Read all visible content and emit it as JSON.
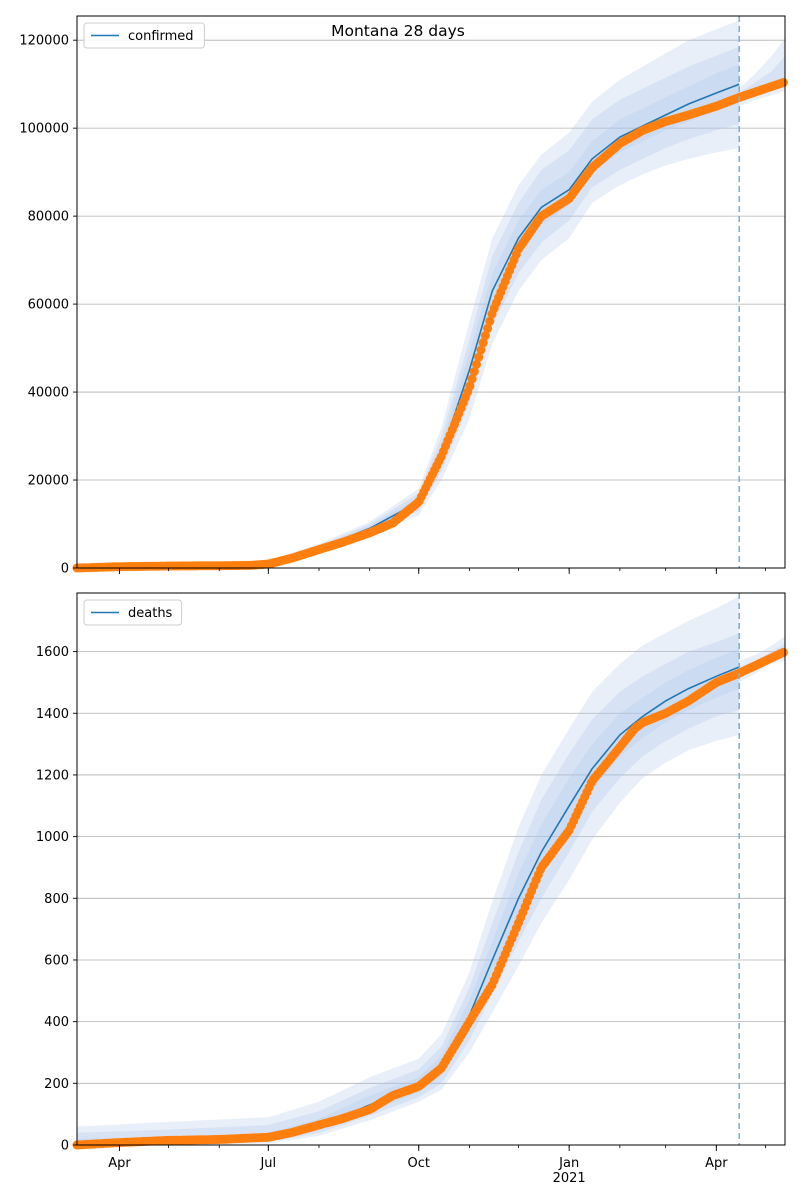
{
  "figure": {
    "title": "Montana 28 days"
  },
  "colors": {
    "fit_line": "#1f77b4",
    "observed": "#ff7f0e",
    "band": "#aec7e8",
    "cutoff_line": "#7fb1d3",
    "grid": "#b0b0b0"
  },
  "chart_data": [
    {
      "type": "line",
      "legend": {
        "label": "confirmed",
        "position": "upper-left"
      },
      "xlabel": "",
      "ylabel": "",
      "xlim": [
        "2020-03-06",
        "2021-05-13"
      ],
      "ylim": [
        0,
        125500
      ],
      "y_ticks": [
        0,
        20000,
        40000,
        60000,
        80000,
        100000,
        120000
      ],
      "x_tick_labels": [
        {
          "date": "2020-04-01",
          "label": "Apr"
        },
        {
          "date": "2020-07-01",
          "label": "Jul"
        },
        {
          "date": "2020-10-01",
          "label": "Oct"
        },
        {
          "date": "2021-01-01",
          "label": "Jan",
          "sublabel": "2021"
        },
        {
          "date": "2021-04-01",
          "label": "Apr"
        }
      ],
      "grid": "y",
      "forecast_start": "2021-04-15",
      "model": {
        "name": "confirmed",
        "x": [
          "2020-03-06",
          "2020-05-01",
          "2020-07-01",
          "2020-08-01",
          "2020-09-01",
          "2020-10-01",
          "2020-10-15",
          "2020-11-01",
          "2020-11-15",
          "2020-12-01",
          "2020-12-15",
          "2021-01-01",
          "2021-01-15",
          "2021-02-01",
          "2021-02-15",
          "2021-03-01",
          "2021-03-15",
          "2021-04-01",
          "2021-04-15"
        ],
        "y": [
          0,
          500,
          1200,
          4500,
          9000,
          15000,
          26000,
          45000,
          63000,
          75000,
          82000,
          86000,
          93000,
          98000,
          100500,
          103000,
          105500,
          108000,
          110000
        ],
        "bands": [
          {
            "lower": [
              0,
              200,
              900,
              3600,
              7500,
              12000,
              20000,
              34000,
              51000,
              63000,
              70000,
              75000,
              83000,
              87000,
              89500,
              91500,
              93000,
              94500,
              95500
            ],
            "upper": [
              0,
              900,
              1600,
              5500,
              10500,
              18000,
              32000,
              56000,
              75000,
              87000,
              94000,
              99000,
              106000,
              111000,
              114000,
              117000,
              120000,
              122500,
              124500
            ]
          },
          {
            "lower": [
              0,
              300,
              1000,
              3900,
              8000,
              13000,
              22000,
              37500,
              55000,
              67000,
              74000,
              79000,
              86500,
              90500,
              93000,
              95500,
              97500,
              99500,
              101000
            ],
            "upper": [
              0,
              800,
              1450,
              5100,
              10000,
              17000,
              30000,
              52000,
              71000,
              83000,
              90500,
              95000,
              102000,
              106500,
              109000,
              111500,
              114000,
              116500,
              118500
            ]
          },
          {
            "lower": [
              0,
              380,
              1080,
              4150,
              8500,
              14000,
              24000,
              41000,
              59000,
              71000,
              78000,
              82500,
              90000,
              94500,
              97000,
              99500,
              101500,
              104000,
              105500
            ],
            "upper": [
              0,
              650,
              1320,
              4800,
              9500,
              16000,
              28000,
              49000,
              67000,
              79000,
              86000,
              90000,
              97000,
              102000,
              104500,
              107000,
              109500,
              112500,
              114500
            ]
          }
        ]
      },
      "observed": {
        "name": "confirmed observed",
        "x": [
          "2020-03-06",
          "2020-04-01",
          "2020-05-01",
          "2020-06-01",
          "2020-06-20",
          "2020-07-01",
          "2020-07-15",
          "2020-08-01",
          "2020-08-15",
          "2020-09-01",
          "2020-09-15",
          "2020-10-01",
          "2020-10-15",
          "2020-11-01",
          "2020-11-15",
          "2020-12-01",
          "2020-12-15",
          "2021-01-01",
          "2021-01-15",
          "2021-02-01",
          "2021-02-15",
          "2021-03-01",
          "2021-03-15",
          "2021-04-01",
          "2021-04-15",
          "2021-05-01",
          "2021-05-13"
        ],
        "y": [
          0,
          300,
          450,
          520,
          600,
          900,
          2200,
          4200,
          5800,
          8000,
          10200,
          15000,
          25500,
          41000,
          58000,
          72500,
          80000,
          84000,
          91000,
          96500,
          99500,
          101500,
          103000,
          105000,
          107000,
          109000,
          110500
        ]
      },
      "forecast_bands": [
        {
          "x": [
            "2021-04-15",
            "2021-04-25",
            "2021-05-05",
            "2021-05-13"
          ],
          "lower": [
            105000,
            106500,
            107500,
            108500
          ],
          "upper": [
            109000,
            112500,
            116500,
            120500
          ]
        },
        {
          "x": [
            "2021-04-15",
            "2021-04-25",
            "2021-05-05",
            "2021-05-13"
          ],
          "lower": [
            105800,
            107300,
            108500,
            109300
          ],
          "upper": [
            108000,
            110500,
            113000,
            116500
          ]
        }
      ]
    },
    {
      "type": "line",
      "legend": {
        "label": "deaths",
        "position": "upper-left"
      },
      "xlabel": "",
      "ylabel": "",
      "xlim": [
        "2020-03-06",
        "2021-05-13"
      ],
      "ylim": [
        0,
        1790
      ],
      "y_ticks": [
        0,
        200,
        400,
        600,
        800,
        1000,
        1200,
        1400,
        1600
      ],
      "x_tick_labels": [
        {
          "date": "2020-04-01",
          "label": "Apr"
        },
        {
          "date": "2020-07-01",
          "label": "Jul"
        },
        {
          "date": "2020-10-01",
          "label": "Oct"
        },
        {
          "date": "2021-01-01",
          "label": "Jan",
          "sublabel": "2021"
        },
        {
          "date": "2021-04-01",
          "label": "Apr"
        }
      ],
      "grid": "y",
      "forecast_start": "2021-04-15",
      "model": {
        "name": "deaths",
        "x": [
          "2020-03-06",
          "2020-05-01",
          "2020-07-01",
          "2020-08-01",
          "2020-09-01",
          "2020-10-01",
          "2020-10-15",
          "2020-11-01",
          "2020-11-15",
          "2020-12-01",
          "2020-12-15",
          "2021-01-01",
          "2021-01-15",
          "2021-02-01",
          "2021-02-15",
          "2021-03-01",
          "2021-03-15",
          "2021-04-01",
          "2021-04-15"
        ],
        "y": [
          0,
          10,
          25,
          60,
          130,
          190,
          250,
          420,
          600,
          800,
          950,
          1100,
          1220,
          1330,
          1390,
          1440,
          1480,
          1520,
          1550
        ],
        "bands": [
          {
            "lower": [
              0,
              0,
              5,
              30,
              80,
              140,
              180,
              300,
              430,
              580,
              720,
              860,
              990,
              1110,
              1190,
              1240,
              1280,
              1310,
              1330
            ],
            "upper": [
              60,
              75,
              90,
              140,
              220,
              280,
              360,
              560,
              790,
              1030,
              1200,
              1350,
              1470,
              1560,
              1620,
              1660,
              1700,
              1740,
              1780
            ]
          },
          {
            "lower": [
              0,
              0,
              10,
              40,
              95,
              155,
              200,
              340,
              490,
              660,
              800,
              950,
              1080,
              1190,
              1260,
              1310,
              1350,
              1390,
              1410
            ],
            "upper": [
              40,
              50,
              65,
              110,
              185,
              245,
              320,
              510,
              720,
              950,
              1120,
              1270,
              1380,
              1470,
              1520,
              1560,
              1600,
              1630,
              1660
            ]
          },
          {
            "lower": [
              0,
              3,
              15,
              50,
              110,
              170,
              225,
              380,
              550,
              730,
              880,
              1030,
              1150,
              1260,
              1320,
              1370,
              1410,
              1450,
              1480
            ],
            "upper": [
              20,
              25,
              40,
              85,
              160,
              220,
              290,
              470,
              660,
              880,
              1040,
              1190,
              1300,
              1400,
              1450,
              1500,
              1540,
              1580,
              1610
            ]
          }
        ]
      },
      "observed": {
        "name": "deaths observed",
        "x": [
          "2020-03-06",
          "2020-04-01",
          "2020-05-01",
          "2020-06-01",
          "2020-07-01",
          "2020-07-15",
          "2020-08-01",
          "2020-08-15",
          "2020-09-01",
          "2020-09-15",
          "2020-10-01",
          "2020-10-15",
          "2020-11-01",
          "2020-11-15",
          "2020-12-01",
          "2020-12-15",
          "2021-01-01",
          "2021-01-15",
          "2021-02-01",
          "2021-02-10",
          "2021-02-15",
          "2021-03-01",
          "2021-03-15",
          "2021-04-01",
          "2021-04-15",
          "2021-05-01",
          "2021-05-13"
        ],
        "y": [
          0,
          8,
          15,
          18,
          25,
          40,
          65,
          85,
          115,
          160,
          190,
          250,
          400,
          520,
          720,
          900,
          1020,
          1180,
          1290,
          1350,
          1370,
          1400,
          1440,
          1500,
          1530,
          1570,
          1600
        ]
      },
      "forecast_bands": [
        {
          "x": [
            "2021-04-15",
            "2021-04-25",
            "2021-05-05",
            "2021-05-13"
          ],
          "lower": [
            1500,
            1530,
            1560,
            1570
          ],
          "upper": [
            1570,
            1590,
            1620,
            1650
          ]
        },
        {
          "x": [
            "2021-04-15",
            "2021-04-25",
            "2021-05-05",
            "2021-05-13"
          ],
          "lower": [
            1515,
            1545,
            1570,
            1585
          ],
          "upper": [
            1550,
            1570,
            1600,
            1625
          ]
        }
      ]
    }
  ]
}
